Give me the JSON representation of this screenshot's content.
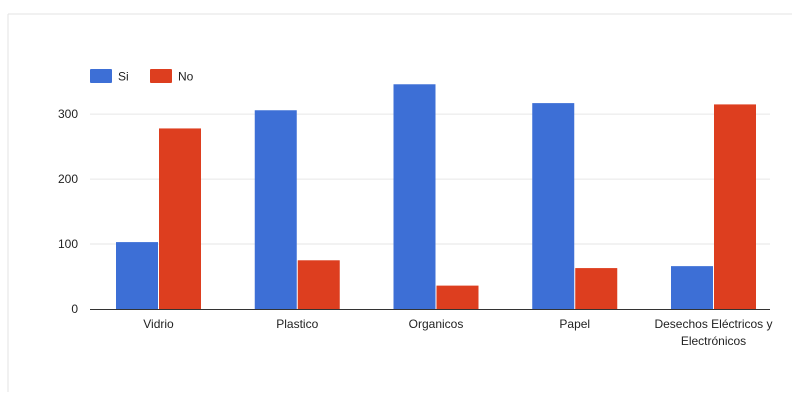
{
  "chart_data": {
    "type": "bar",
    "categories": [
      "Vidrio",
      "Plastico",
      "Organicos",
      "Papel",
      "Desechos Eléctricos y Electrónicos"
    ],
    "category_label_lines": [
      [
        "Vidrio"
      ],
      [
        "Plastico"
      ],
      [
        "Organicos"
      ],
      [
        "Papel"
      ],
      [
        "Desechos Eléctricos y",
        "Electrónicos"
      ]
    ],
    "series": [
      {
        "name": "Si",
        "color": "#3d6fd6",
        "values": [
          103,
          306,
          346,
          317,
          66
        ]
      },
      {
        "name": "No",
        "color": "#dd3e1f",
        "values": [
          278,
          75,
          36,
          63,
          315
        ]
      }
    ],
    "title": "",
    "xlabel": "",
    "ylabel": "",
    "ylim": [
      0,
      360
    ],
    "yticks": [
      0,
      100,
      200,
      300
    ],
    "grid": true,
    "legend_position": "top-left"
  }
}
